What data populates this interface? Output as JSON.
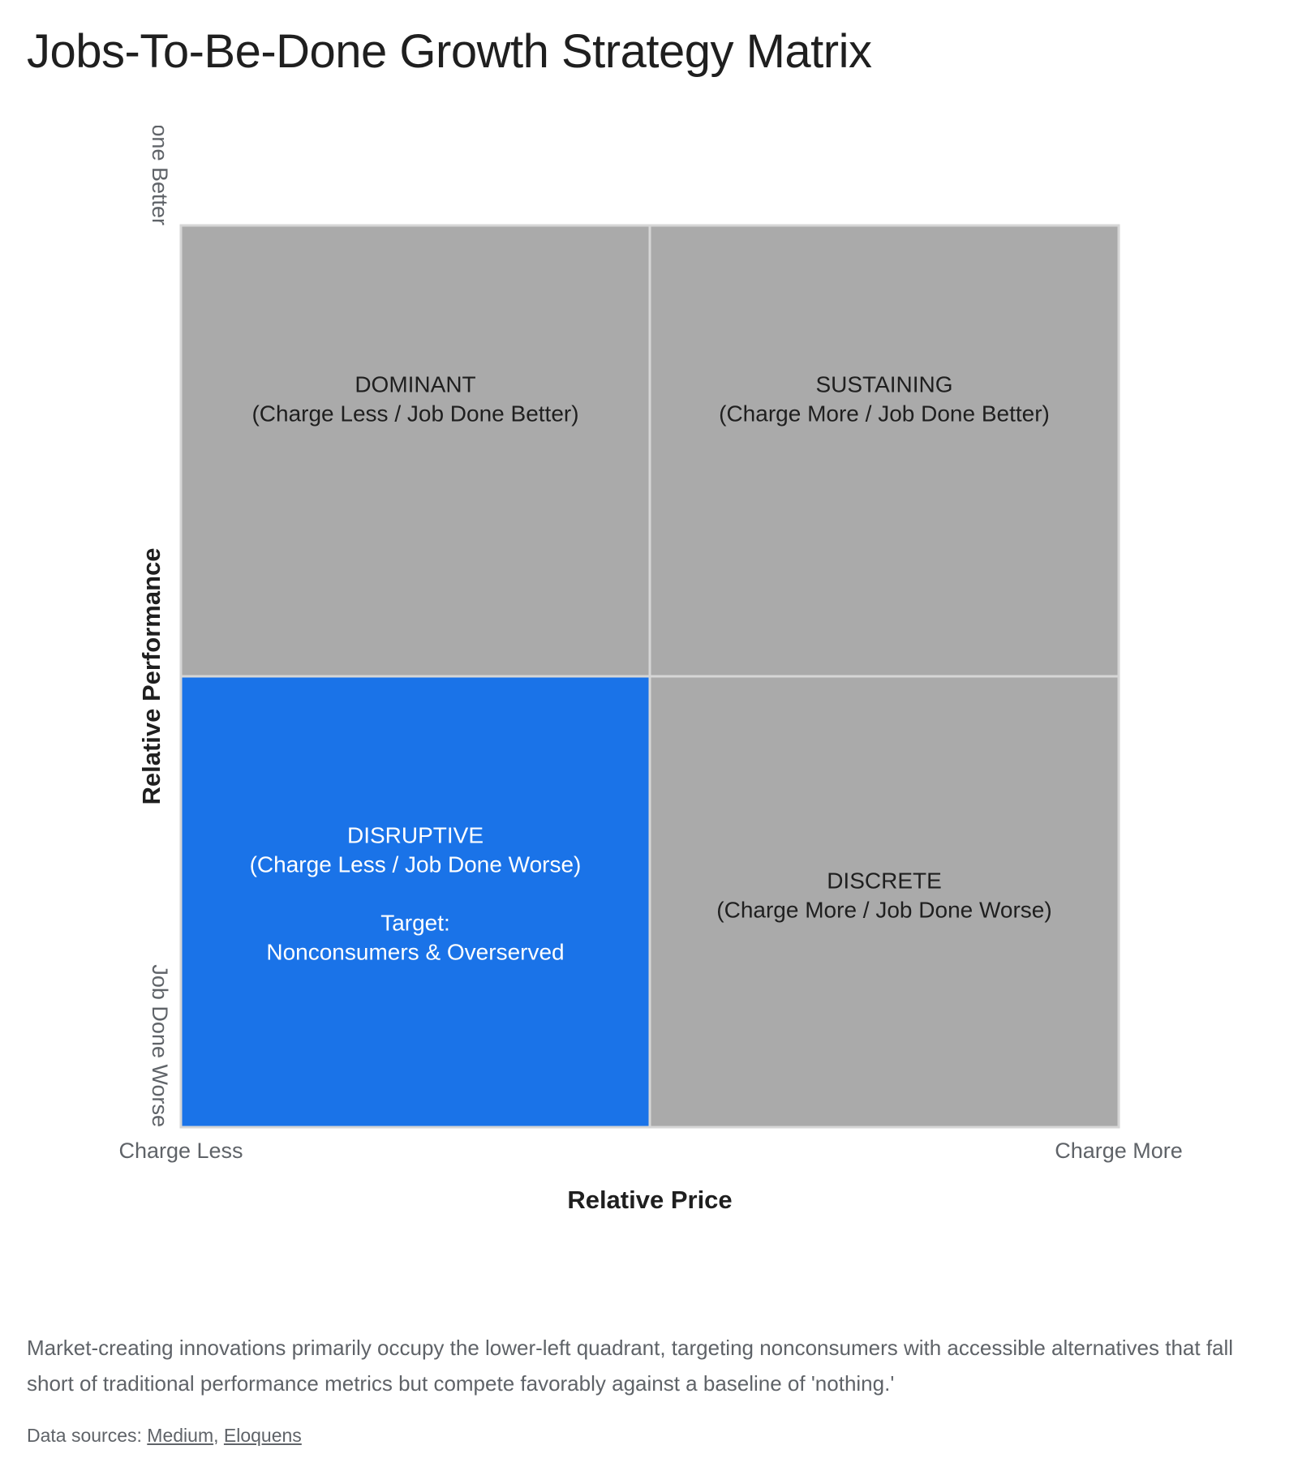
{
  "title": "Jobs-To-Be-Done Growth Strategy Matrix",
  "chart_data": {
    "type": "heatmap",
    "xlabel": "Relative Price",
    "ylabel": "Relative Performance",
    "x_ticks": [
      "Charge Less",
      "Charge More"
    ],
    "y_ticks": [
      "Job Done Worse",
      "Job Done Better"
    ],
    "grid": true,
    "cells": [
      {
        "col": 0,
        "row": 1,
        "lines": [
          "DOMINANT",
          "(Charge Less / Job Done Better)"
        ],
        "color": "#aaaaaa",
        "text_color": "#1f1f1f"
      },
      {
        "col": 1,
        "row": 1,
        "lines": [
          "SUSTAINING",
          "(Charge More / Job Done Better)"
        ],
        "color": "#aaaaaa",
        "text_color": "#1f1f1f"
      },
      {
        "col": 0,
        "row": 0,
        "lines": [
          "DISRUPTIVE",
          "(Charge Less / Job Done Worse)",
          "",
          "Target:",
          "Nonconsumers & Overserved"
        ],
        "color": "#1a73e8",
        "text_color": "#ffffff",
        "highlight": true
      },
      {
        "col": 1,
        "row": 0,
        "lines": [
          "DISCRETE",
          "(Charge More / Job Done Worse)"
        ],
        "color": "#aaaaaa",
        "text_color": "#1f1f1f"
      }
    ]
  },
  "caption": "Market-creating innovations primarily occupy the lower-left quadrant, targeting nonconsumers with accessible alternatives that fall short of traditional performance metrics but compete favorably against a baseline of 'nothing.'",
  "sources": {
    "prefix": "Data sources: ",
    "links": [
      "Medium",
      "Eloquens"
    ],
    "separator": ", "
  },
  "colors": {
    "highlight": "#1a73e8",
    "neutral": "#aaaaaa",
    "grid": "#d6d6d6"
  }
}
